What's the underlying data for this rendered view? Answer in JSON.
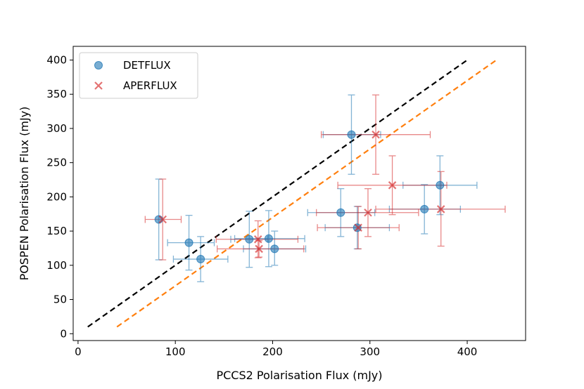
{
  "chart_data": {
    "type": "scatter",
    "xlabel": "PCCS2 Polarisation Flux (mJy)",
    "ylabel": "POSPEN Polarisation Flux (mJy)",
    "xlim": [
      -5,
      460
    ],
    "ylim": [
      -10,
      420
    ],
    "xticks": [
      0,
      100,
      200,
      300,
      400
    ],
    "yticks": [
      0,
      50,
      100,
      150,
      200,
      250,
      300,
      350,
      400
    ],
    "grid": false,
    "legend_position": "top-left",
    "series": [
      {
        "name": "DETFLUX",
        "marker": "circle",
        "color": "#1f77b4",
        "points": [
          {
            "x": 83,
            "y": 167,
            "xerr": [
              83,
              83
            ],
            "yerr": [
              108,
              226
            ]
          },
          {
            "x": 114,
            "y": 133,
            "xerr": [
              92,
              140
            ],
            "yerr": [
              93,
              173
            ]
          },
          {
            "x": 126,
            "y": 109,
            "xerr": [
              98,
              154
            ],
            "yerr": [
              76,
              142
            ]
          },
          {
            "x": 176,
            "y": 138,
            "xerr": [
              157,
              195
            ],
            "yerr": [
              97,
              179
            ]
          },
          {
            "x": 196,
            "y": 139,
            "xerr": [
              161,
              233
            ],
            "yerr": [
              98,
              180
            ]
          },
          {
            "x": 202,
            "y": 124,
            "xerr": [
              170,
              234
            ],
            "yerr": [
              100,
              150
            ]
          },
          {
            "x": 270,
            "y": 177,
            "xerr": [
              236,
              305
            ],
            "yerr": [
              142,
              212
            ]
          },
          {
            "x": 281,
            "y": 291,
            "xerr": [
              252,
              311
            ],
            "yerr": [
              233,
              349
            ]
          },
          {
            "x": 287,
            "y": 155,
            "xerr": [
              254,
              320
            ],
            "yerr": [
              124,
              186
            ]
          },
          {
            "x": 356,
            "y": 182,
            "xerr": [
              320,
              393
            ],
            "yerr": [
              146,
              218
            ]
          },
          {
            "x": 372,
            "y": 217,
            "xerr": [
              334,
              410
            ],
            "yerr": [
              174,
              260
            ]
          }
        ]
      },
      {
        "name": "APERFLUX",
        "marker": "x",
        "color": "#d62728",
        "points": [
          {
            "x": 87,
            "y": 167,
            "xerr": [
              69,
              106
            ],
            "yerr": [
              108,
              226
            ]
          },
          {
            "x": 185,
            "y": 138,
            "xerr": [
              142,
              226
            ],
            "yerr": [
              111,
              165
            ]
          },
          {
            "x": 186,
            "y": 124,
            "xerr": [
              143,
              232
            ],
            "yerr": [
              112,
              136
            ]
          },
          {
            "x": 288,
            "y": 155,
            "xerr": [
              246,
              330
            ],
            "yerr": [
              124,
              186
            ]
          },
          {
            "x": 298,
            "y": 177,
            "xerr": [
              245,
              350
            ],
            "yerr": [
              142,
              212
            ]
          },
          {
            "x": 306,
            "y": 291,
            "xerr": [
              250,
              362
            ],
            "yerr": [
              233,
              349
            ]
          },
          {
            "x": 323,
            "y": 217,
            "xerr": [
              267,
              379
            ],
            "yerr": [
              174,
              260
            ]
          },
          {
            "x": 373,
            "y": 182,
            "xerr": [
              306,
              439
            ],
            "yerr": [
              128,
              237
            ]
          }
        ]
      }
    ],
    "lines": [
      {
        "style": "dashed",
        "color": "#000000",
        "x": [
          10,
          400
        ],
        "y": [
          10,
          400
        ]
      },
      {
        "style": "dashed",
        "color": "#ff7f0e",
        "x": [
          40,
          430
        ],
        "y": [
          10,
          400
        ]
      }
    ]
  }
}
